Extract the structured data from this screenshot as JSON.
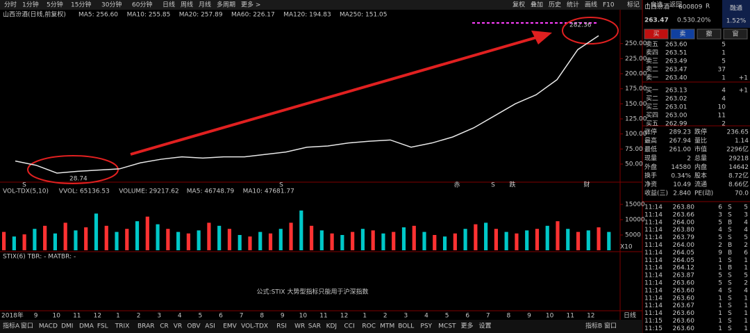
{
  "toolbar": {
    "left": [
      "分时",
      "1分钟",
      "5分钟",
      "15分钟",
      "30分钟",
      "60分钟",
      "日线",
      "周线",
      "月线",
      "多周期",
      "更多 >"
    ],
    "right": [
      "复权",
      "叠加",
      "历史",
      "统计",
      "画线",
      "F10",
      "标记",
      "+自选",
      "返回"
    ]
  },
  "chart_title": "山西汾酒(日线,前复权)",
  "ma_labels": [
    {
      "text": "MA5: 256.60",
      "color": "#ffffff"
    },
    {
      "text": "MA10: 255.85",
      "color": "#ffff00"
    },
    {
      "text": "MA20: 257.89",
      "color": "#ff40ff"
    },
    {
      "text": "MA60: 226.17",
      "color": "#00e600"
    },
    {
      "text": "MA120: 194.83",
      "color": "#c0c0c0"
    },
    {
      "text": "MA250: 151.05",
      "color": "#3060ff"
    }
  ],
  "price_chart": {
    "type": "line",
    "color": "#e8e8e8",
    "ylim": [
      20,
      290
    ],
    "yticks": [
      {
        "value": 50,
        "label": "50.00"
      },
      {
        "value": 75,
        "label": "75.00"
      },
      {
        "value": 100,
        "label": "100.00"
      },
      {
        "value": 125,
        "label": "125.00"
      },
      {
        "value": 150,
        "label": "150.00"
      },
      {
        "value": 175,
        "label": "175.00"
      },
      {
        "value": 200,
        "label": "200.00"
      },
      {
        "value": 225,
        "label": "225.00"
      },
      {
        "value": 250,
        "label": "250.00"
      }
    ],
    "closes": [
      55,
      48,
      35,
      38,
      40,
      42,
      52,
      58,
      62,
      60,
      62,
      62,
      66,
      70,
      78,
      80,
      85,
      88,
      90,
      78,
      85,
      95,
      110,
      130,
      150,
      165,
      190,
      240,
      263
    ],
    "high_label": "282.36",
    "low_label": "28.74",
    "event_marks": [
      {
        "text": "S",
        "color": "#ff3232"
      },
      {
        "text": "S",
        "color": "#ff3232"
      },
      {
        "text": "赤",
        "color": "#ff3232"
      },
      {
        "text": "S",
        "color": "#ff3232"
      },
      {
        "text": "跌",
        "color": "#00e600"
      },
      {
        "text": "财",
        "color": "#3060ff"
      }
    ]
  },
  "volume_chart": {
    "type": "bar",
    "header": [
      {
        "text": "VOL-TDX(5,10)",
        "color": "#c8c8c8"
      },
      {
        "text": "VVOL: 65136.53",
        "color": "#ffffff"
      },
      {
        "text": "VOLUME: 29217.62",
        "color": "#ffff00"
      },
      {
        "text": "MA5: 46748.79",
        "color": "#ffff00"
      },
      {
        "text": "MA10: 47681.77",
        "color": "#ff40ff"
      }
    ],
    "ylim": [
      0,
      20000
    ],
    "yticks": [
      5000,
      10000,
      15000
    ],
    "unit": "X10",
    "colors": [
      "#ff3232",
      "#00c8c8"
    ],
    "values": [
      6000,
      4500,
      5200,
      7000,
      8000,
      5500,
      9000,
      6500,
      7500,
      12000,
      8000,
      6000,
      7000,
      9500,
      11000,
      8500,
      7000,
      6000,
      5500,
      6500,
      9000,
      8000,
      7000,
      5000,
      4500,
      6000,
      5500,
      7000,
      9000,
      13000,
      8000,
      6500,
      5500,
      5000,
      6000,
      7000,
      6500,
      5500,
      6000,
      7500,
      8000,
      6000,
      5000,
      4500,
      5500,
      7000,
      8500,
      9000,
      7000,
      6000,
      5500,
      6500,
      7000,
      8000,
      9500,
      7000,
      6000,
      6500,
      7500,
      6000
    ]
  },
  "stix": {
    "header": "STIX(6)  TBR: -  MATBR: -",
    "note": "公式:STIX 大势型指标只能用于沪深指数"
  },
  "x_axis": {
    "labels": [
      "2018年",
      "9",
      "10",
      "11",
      "12",
      "1",
      "2",
      "3",
      "4",
      "5",
      "6",
      "7",
      "8",
      "9",
      "10",
      "11",
      "12",
      "1",
      "2",
      "3",
      "4",
      "5",
      "6",
      "7",
      "8",
      "9",
      "10",
      "11",
      "12"
    ],
    "period": "日线"
  },
  "bottom_tabs": [
    "指标A",
    "窗口",
    "MACD",
    "DMI",
    "DMA",
    "FSL",
    "TRIX",
    "BRAR",
    "CR",
    "VR",
    "OBV",
    "ASI",
    "EMV",
    "VOL-TDX",
    "RSI",
    "WR",
    "SAR",
    "KDJ",
    "CCI",
    "ROC",
    "MTM",
    "BOLL",
    "PSY",
    "MCST",
    "更多",
    "设置"
  ],
  "bottom_right": [
    "指标B",
    "窗口"
  ],
  "quote": {
    "name": "山西汾酒",
    "code": "600809",
    "tag": "R",
    "button": "融通",
    "price": "263.47",
    "change": "0.53",
    "pct": "0.20%",
    "side_pct": "1.52%"
  },
  "trade_buttons": [
    "买",
    "卖",
    "撤",
    "窗"
  ],
  "order_book": [
    [
      "卖五",
      "263.60",
      "5",
      ""
    ],
    [
      "卖四",
      "263.51",
      "1",
      ""
    ],
    [
      "卖三",
      "263.49",
      "5",
      ""
    ],
    [
      "卖二",
      "263.47",
      "37",
      ""
    ],
    [
      "卖一",
      "263.40",
      "1",
      "+1"
    ],
    [
      "买一",
      "263.13",
      "4",
      "+1"
    ],
    [
      "买二",
      "263.02",
      "4",
      ""
    ],
    [
      "买三",
      "263.01",
      "10",
      ""
    ],
    [
      "买四",
      "263.00",
      "11",
      ""
    ],
    [
      "买五",
      "262.99",
      "2",
      ""
    ]
  ],
  "stats": [
    [
      "涨停",
      "289.23",
      "跌停",
      "236.65"
    ],
    [
      "最高",
      "267.94",
      "量比",
      "1.14"
    ],
    [
      "最低",
      "261.00",
      "市值",
      "2296亿"
    ],
    [
      "现量",
      "2",
      "总量",
      "29218"
    ],
    [
      "外盘",
      "14580",
      "内盘",
      "14642"
    ],
    [
      "换手",
      "0.34%",
      "股本",
      "8.72亿"
    ],
    [
      "净资",
      "10.49",
      "流通",
      "8.66亿"
    ],
    [
      "收益(三)",
      "2.840",
      "PE(动)",
      "70.0"
    ]
  ],
  "trades": [
    [
      "11:14",
      "263.80",
      "6",
      "S",
      "5"
    ],
    [
      "11:14",
      "263.66",
      "3",
      "S",
      "3"
    ],
    [
      "11:14",
      "264.00",
      "5",
      "B",
      "4"
    ],
    [
      "11:14",
      "263.80",
      "4",
      "S",
      "4"
    ],
    [
      "11:14",
      "263.79",
      "5",
      "S",
      "5"
    ],
    [
      "11:14",
      "264.00",
      "2",
      "B",
      "2"
    ],
    [
      "11:14",
      "264.05",
      "9",
      "B",
      "6"
    ],
    [
      "11:14",
      "264.05",
      "1",
      "S",
      "1"
    ],
    [
      "11:14",
      "264.12",
      "1",
      "B",
      "1"
    ],
    [
      "11:14",
      "263.87",
      "5",
      "S",
      "5"
    ],
    [
      "11:14",
      "263.60",
      "5",
      "S",
      "2"
    ],
    [
      "11:14",
      "263.60",
      "4",
      "S",
      "4"
    ],
    [
      "11:14",
      "263.60",
      "1",
      "S",
      "1"
    ],
    [
      "11:14",
      "263.67",
      "1",
      "S",
      "1"
    ],
    [
      "11:14",
      "263.60",
      "1",
      "S",
      "1"
    ],
    [
      "11:15",
      "263.60",
      "1",
      "S",
      "1"
    ],
    [
      "11:15",
      "263.60",
      "1",
      "S",
      "1"
    ]
  ]
}
